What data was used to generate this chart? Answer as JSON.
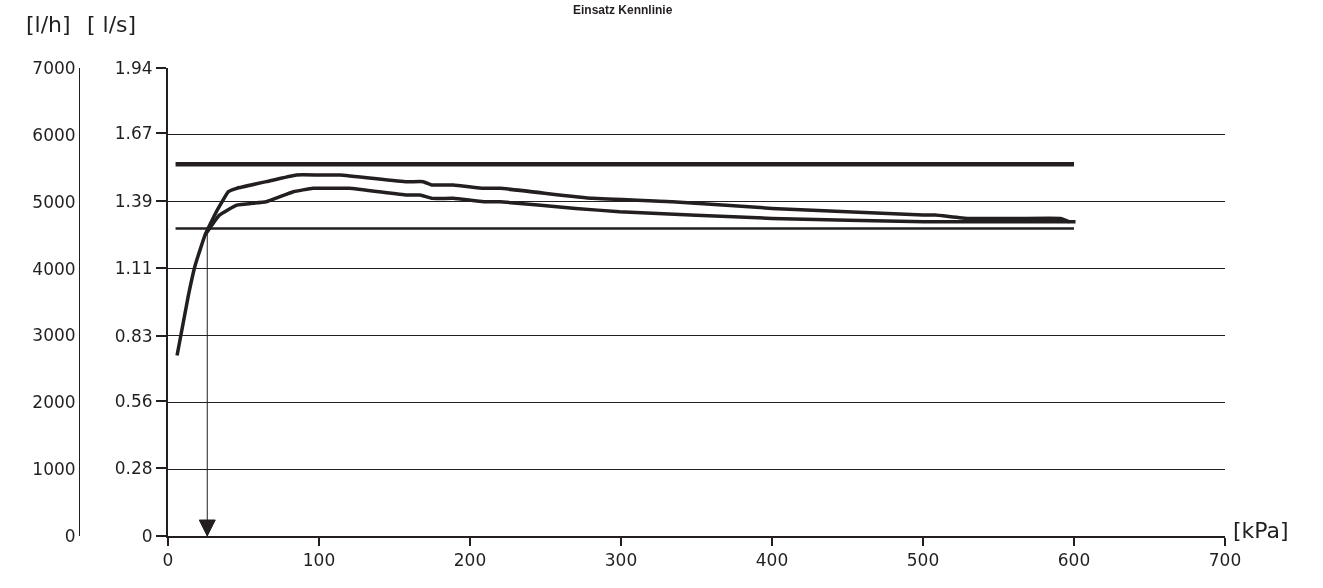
{
  "chart_data": {
    "type": "line",
    "title": "Einsatz Kennlinie",
    "xlabel": "[kPa]",
    "ylabel": "[l/h]",
    "y2label": "[ l/s]",
    "xlim": [
      0,
      700
    ],
    "xticks": [
      0,
      100,
      200,
      300,
      400,
      500,
      600,
      700
    ],
    "ylim": [
      0,
      7000
    ],
    "yticks": [
      0,
      1000,
      2000,
      3000,
      4000,
      5000,
      6000,
      7000
    ],
    "y2lim": [
      0,
      1.94
    ],
    "y2ticks": [
      0,
      0.28,
      0.56,
      0.83,
      1.11,
      1.39,
      1.67,
      1.94
    ],
    "grid": "y",
    "marker": "none",
    "line_style": "solid",
    "series": [
      {
        "color": "#231f20",
        "x": [
          6,
          13.5,
          18,
          24.5,
          32,
          40,
          45.5,
          65,
          85,
          100,
          114,
          158,
          169,
          175,
          189,
          209,
          220,
          281,
          334,
          400,
          500,
          508,
          530,
          564,
          591,
          597
        ],
        "values": [
          2700,
          3600,
          4050,
          4500,
          4850,
          5150,
          5200,
          5300,
          5400,
          5400,
          5400,
          5300,
          5300,
          5250,
          5250,
          5200,
          5200,
          5050,
          5000,
          4900,
          4800,
          4800,
          4750,
          4750,
          4750,
          4700
        ]
      },
      {
        "color": "#231f20",
        "x": [
          24.5,
          29,
          34,
          45.5,
          65,
          83,
          96,
          120,
          158,
          167,
          175,
          189,
          209,
          220,
          270,
          299,
          400,
          501,
          601
        ],
        "values": [
          4500,
          4650,
          4800,
          4950,
          5000,
          5150,
          5200,
          5200,
          5100,
          5100,
          5050,
          5050,
          5000,
          5000,
          4900,
          4850,
          4750,
          4700,
          4700
        ]
      },
      {
        "color": "#231f20",
        "x": [
          5,
          600
        ],
        "values": [
          5560,
          5560
        ]
      },
      {
        "color": "#231f20",
        "x": [
          5,
          600
        ],
        "values": [
          4600,
          4600
        ]
      }
    ],
    "ref_lines": [
      {
        "axis": "x",
        "value": 26,
        "color": "#231f20"
      }
    ]
  }
}
